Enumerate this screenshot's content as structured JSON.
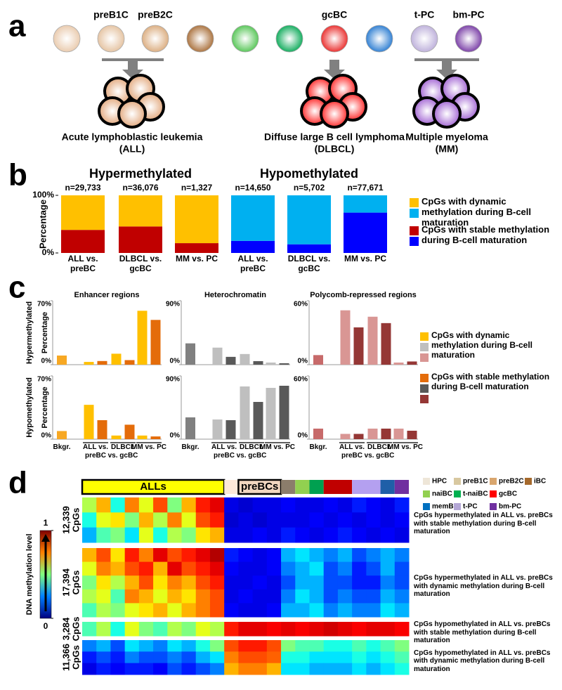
{
  "panel_labels": [
    "a",
    "b",
    "c",
    "d"
  ],
  "cells": [
    {
      "label": null,
      "color": "#e8c7a8"
    },
    {
      "label": "preB1C",
      "color": "#e3bf9b"
    },
    {
      "label": "preB2C",
      "color": "#d9a878"
    },
    {
      "label": null,
      "color": "#a4672f"
    },
    {
      "label": null,
      "color": "#4cc24c"
    },
    {
      "label": null,
      "color": "#00a651"
    },
    {
      "label": "gcBC",
      "color": "#e8201f"
    },
    {
      "label": null,
      "color": "#1f75cf"
    },
    {
      "label": "t-PC",
      "color": "#b9abd8"
    },
    {
      "label": "bm-PC",
      "color": "#7030a0"
    }
  ],
  "diseases": [
    {
      "name": "Acute lymphoblastic leukemia",
      "abbr": "(ALL)",
      "color": "#e0a274"
    },
    {
      "name": "Diffuse large B cell lymphoma",
      "abbr": "(DLBCL)",
      "color": "#ff1a1a"
    },
    {
      "name": "Multiple myeloma",
      "abbr": "(MM)",
      "color": "#9b59d0"
    }
  ],
  "chart_data": [
    {
      "type": "bar",
      "stacked": true,
      "y_label": "Percentage",
      "ylim": [
        0,
        100
      ],
      "yticks": [
        {
          "value": 0,
          "label": "0%"
        },
        {
          "value": 100,
          "label": "100%"
        }
      ],
      "groups": [
        {
          "title": "Hypermethylated",
          "categories": [
            "ALL vs. preBC",
            "DLBCL vs. gcBC",
            "MM vs. PC"
          ],
          "n_labels": [
            "n=29,733",
            "n=36,076",
            "n=1,327"
          ]
        },
        {
          "title": "Hypomethylated",
          "categories": [
            "ALL vs. preBC",
            "DLBCL vs. gcBC",
            "MM vs. PC"
          ],
          "n_labels": [
            "n=14,650",
            "n=5,702",
            "n=77,671"
          ]
        }
      ],
      "series": [
        {
          "name": "CpGs with stable methylation during B-cell maturation",
          "colors": [
            "#c00000",
            "#0000ff"
          ],
          "values": [
            40,
            46,
            17,
            21,
            15,
            70
          ]
        },
        {
          "name": "CpGs with dynamic methylation during B-cell maturation",
          "colors": [
            "#ffc000",
            "#00b0f0"
          ],
          "values": [
            60,
            54,
            83,
            79,
            85,
            30
          ]
        }
      ]
    },
    {
      "type": "bar",
      "y_label": "Percentage",
      "row_labels": [
        "Hypermethylated",
        "Hypomethylated"
      ],
      "categories": [
        "Bkgr.",
        "ALL vs. preBC",
        "DLBCL vs. gcBC",
        "MM vs. PC"
      ],
      "legend": [
        "CpGs with dynamic methylation during B-cell maturation",
        "CpGs with stable methylation during B-cell maturation"
      ],
      "columns": [
        {
          "title": "Enhancer regions",
          "ylim": [
            0,
            70
          ],
          "yticks": [
            {
              "value": 0,
              "label": "0%"
            },
            {
              "value": 70,
              "label": "70%"
            }
          ],
          "colors": [
            "#f7a823",
            "#ffc000",
            "#e46c0a"
          ],
          "rows": [
            [
              [
                10,
                null,
                null,
                null
              ],
              [
                null,
                3,
                12,
                59
              ],
              [
                null,
                4,
                5,
                49
              ]
            ],
            [
              [
                9,
                null,
                null,
                null
              ],
              [
                null,
                38,
                4,
                4
              ],
              [
                null,
                21,
                16,
                3
              ]
            ]
          ]
        },
        {
          "title": "Heterochromatin",
          "ylim": [
            0,
            90
          ],
          "yticks": [
            {
              "value": 0,
              "label": "0%"
            },
            {
              "value": 90,
              "label": "90%"
            }
          ],
          "colors": [
            "#808080",
            "#bfbfbf",
            "#595959"
          ],
          "rows": [
            [
              [
                30,
                null,
                null,
                null
              ],
              [
                null,
                24,
                15,
                3
              ],
              [
                null,
                11,
                5,
                2
              ]
            ],
            [
              [
                31,
                null,
                null,
                null
              ],
              [
                null,
                28,
                75,
                73
              ],
              [
                null,
                27,
                53,
                76
              ]
            ]
          ]
        },
        {
          "title": "Polycomb-repressed regions",
          "ylim": [
            0,
            60
          ],
          "yticks": [
            {
              "value": 0,
              "label": "0%"
            },
            {
              "value": 60,
              "label": "60%"
            }
          ],
          "colors": [
            "#c76a6a",
            "#d99694",
            "#953735"
          ],
          "rows": [
            [
              [
                9,
                null,
                null,
                null
              ],
              [
                null,
                51,
                45,
                2
              ],
              [
                null,
                35,
                39,
                3
              ]
            ],
            [
              [
                10,
                null,
                null,
                null
              ],
              [
                null,
                5,
                10,
                10
              ],
              [
                null,
                5,
                10,
                8
              ]
            ]
          ]
        }
      ]
    },
    {
      "type": "heatmap",
      "colorbar": {
        "label": "DNA methylation level",
        "ylim": [
          0,
          1
        ],
        "yticks": [
          0,
          1
        ]
      },
      "annotation": [
        {
          "label": "ALLs",
          "color": "#ffff00",
          "columns": 10
        },
        {
          "color": "#fde9d9",
          "columns": 1
        },
        {
          "label": "preBCs",
          "color": "#f2d7c0",
          "columns": 3
        },
        {
          "color": "#8b7d6b",
          "columns": 1
        },
        {
          "color": "#92d050",
          "columns": 1
        },
        {
          "color": "#00a050",
          "columns": 1
        },
        {
          "color": "#c00000",
          "columns": 2
        },
        {
          "color": "#b4a0f0",
          "columns": 2
        },
        {
          "color": "#1f5fa8",
          "columns": 1
        },
        {
          "color": "#7030a0",
          "columns": 1
        }
      ],
      "legend": [
        {
          "name": "HPC",
          "color": "#eee6d8"
        },
        {
          "name": "preB1C",
          "color": "#d8c8a0"
        },
        {
          "name": "preB2C",
          "color": "#d9a66e"
        },
        {
          "name": "iBC",
          "color": "#a5692c"
        },
        {
          "name": "naiBC",
          "color": "#92d050"
        },
        {
          "name": "t-naiBC",
          "color": "#00b050"
        },
        {
          "name": "gcBC",
          "color": "#ff0000"
        },
        {
          "name": "memBC",
          "color": "#0070c0"
        },
        {
          "name": "t-PC",
          "color": "#b4a7d6"
        },
        {
          "name": "bm-PC",
          "color": "#7030a0"
        }
      ],
      "blocks": [
        {
          "count": "12,339",
          "unit": "CpGs",
          "description": "CpGs hypermethylated in ALL vs. preBCs with stable methylation during B-cell maturation",
          "rows": [
            [
              0.55,
              0.7,
              0.4,
              0.75,
              0.6,
              0.8,
              0.5,
              0.7,
              0.85,
              0.9,
              0.1,
              0.08,
              0.1,
              0.1,
              0.12,
              0.1,
              0.1,
              0.12,
              0.1,
              0.15,
              0.12,
              0.1,
              0.15
            ],
            [
              0.4,
              0.6,
              0.65,
              0.5,
              0.7,
              0.55,
              0.75,
              0.6,
              0.8,
              0.85,
              0.08,
              0.1,
              0.08,
              0.1,
              0.1,
              0.1,
              0.12,
              0.1,
              0.12,
              0.1,
              0.12,
              0.1,
              0.12
            ],
            [
              0.3,
              0.45,
              0.5,
              0.35,
              0.6,
              0.4,
              0.55,
              0.5,
              0.65,
              0.7,
              0.1,
              0.1,
              0.12,
              0.1,
              0.15,
              0.12,
              0.1,
              0.12,
              0.15,
              0.12,
              0.1,
              0.12,
              0.1
            ]
          ]
        },
        {
          "count": "17,394",
          "unit": "CpGs",
          "description": "CpGs hypermethylated in ALL vs. preBCs with dynamic methylation during B-cell maturation",
          "rows": [
            [
              0.7,
              0.8,
              0.65,
              0.85,
              0.75,
              0.9,
              0.8,
              0.85,
              0.9,
              0.95,
              0.15,
              0.12,
              0.1,
              0.12,
              0.3,
              0.35,
              0.3,
              0.25,
              0.3,
              0.2,
              0.25,
              0.3,
              0.25
            ],
            [
              0.6,
              0.75,
              0.7,
              0.8,
              0.85,
              0.7,
              0.9,
              0.8,
              0.85,
              0.9,
              0.12,
              0.1,
              0.1,
              0.12,
              0.25,
              0.3,
              0.35,
              0.2,
              0.25,
              0.15,
              0.2,
              0.3,
              0.2
            ],
            [
              0.5,
              0.65,
              0.55,
              0.7,
              0.8,
              0.65,
              0.75,
              0.7,
              0.8,
              0.85,
              0.1,
              0.1,
              0.12,
              0.1,
              0.2,
              0.3,
              0.3,
              0.2,
              0.2,
              0.15,
              0.15,
              0.25,
              0.2
            ],
            [
              0.55,
              0.6,
              0.45,
              0.75,
              0.7,
              0.6,
              0.7,
              0.65,
              0.75,
              0.8,
              0.1,
              0.12,
              0.1,
              0.1,
              0.25,
              0.35,
              0.3,
              0.2,
              0.25,
              0.2,
              0.2,
              0.3,
              0.25
            ],
            [
              0.45,
              0.55,
              0.5,
              0.6,
              0.65,
              0.7,
              0.6,
              0.7,
              0.75,
              0.8,
              0.12,
              0.1,
              0.1,
              0.12,
              0.3,
              0.3,
              0.35,
              0.25,
              0.3,
              0.25,
              0.25,
              0.35,
              0.3
            ]
          ]
        },
        {
          "count": "3,284",
          "unit": "CpGs",
          "description": "CpGs hypomethylated in ALL vs. preBCs with stable methylation during B-cell maturation",
          "rows": [
            [
              0.45,
              0.55,
              0.4,
              0.6,
              0.5,
              0.45,
              0.55,
              0.5,
              0.6,
              0.55,
              0.85,
              0.9,
              0.9,
              0.88,
              0.9,
              0.88,
              0.9,
              0.92,
              0.9,
              0.88,
              0.9,
              0.9,
              0.88
            ]
          ]
        },
        {
          "count": "11,366",
          "unit": "CpGs",
          "description": "CpGs hypomethylated in ALL vs. preBCs with dynamic methylation during B-cell maturation",
          "rows": [
            [
              0.25,
              0.3,
              0.2,
              0.35,
              0.3,
              0.25,
              0.35,
              0.3,
              0.4,
              0.5,
              0.8,
              0.85,
              0.85,
              0.8,
              0.5,
              0.45,
              0.45,
              0.4,
              0.4,
              0.45,
              0.4,
              0.45,
              0.5
            ],
            [
              0.15,
              0.2,
              0.15,
              0.25,
              0.2,
              0.2,
              0.25,
              0.2,
              0.3,
              0.35,
              0.75,
              0.8,
              0.8,
              0.78,
              0.4,
              0.4,
              0.35,
              0.35,
              0.35,
              0.4,
              0.35,
              0.4,
              0.45
            ],
            [
              0.1,
              0.15,
              0.12,
              0.15,
              0.15,
              0.12,
              0.2,
              0.15,
              0.2,
              0.25,
              0.7,
              0.75,
              0.75,
              0.7,
              0.35,
              0.35,
              0.3,
              0.3,
              0.3,
              0.35,
              0.3,
              0.35,
              0.4
            ]
          ]
        }
      ]
    }
  ]
}
